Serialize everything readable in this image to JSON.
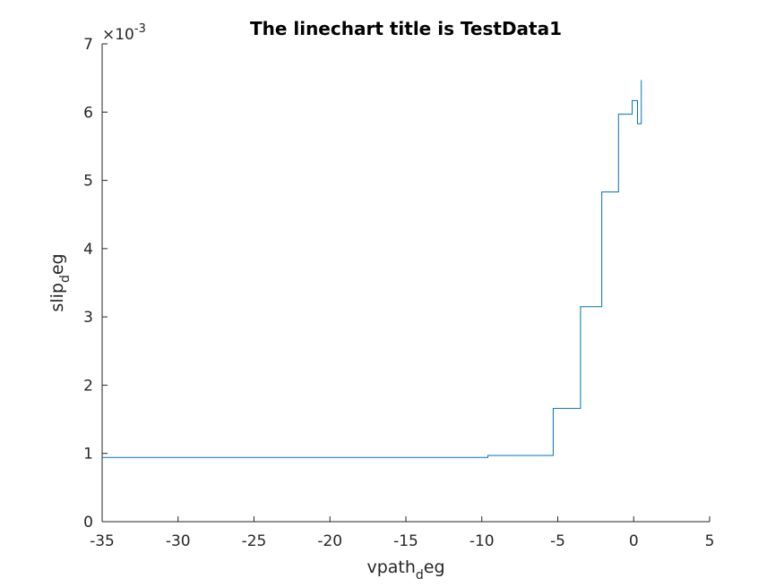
{
  "chart_data": {
    "type": "line",
    "title": "The linechart title is TestData1",
    "xlabel": {
      "main": "vpath",
      "sub": "d",
      "rest": "eg"
    },
    "ylabel": {
      "main": "slip",
      "sub": "d",
      "rest": "eg"
    },
    "xlim": [
      -35,
      5
    ],
    "ylim": [
      0,
      0.007
    ],
    "y_exponent": {
      "base": "×10",
      "power": "-3"
    },
    "xticks": [
      -35,
      -30,
      -25,
      -20,
      -15,
      -10,
      -5,
      0,
      5
    ],
    "xtick_labels": [
      "-35",
      "-30",
      "-25",
      "-20",
      "-15",
      "-10",
      "-5",
      "0",
      "5"
    ],
    "yticks": [
      0,
      0.001,
      0.002,
      0.003,
      0.004,
      0.005,
      0.006,
      0.007
    ],
    "ytick_labels": [
      "0",
      "1",
      "2",
      "3",
      "4",
      "5",
      "6",
      "7"
    ],
    "grid": false,
    "line_color": "#0072bd",
    "series": [
      {
        "x": [
          -35,
          -9.6,
          -9.6,
          -5.3,
          -5.3,
          -3.5,
          -3.5,
          -2.1,
          -2.1,
          -1.0,
          -1.0,
          -0.1,
          -0.1,
          0.25,
          0.25,
          0.5,
          0.5
        ],
        "y": [
          0.00094,
          0.00094,
          0.00097,
          0.00097,
          0.00166,
          0.00166,
          0.00315,
          0.00315,
          0.00483,
          0.00483,
          0.00597,
          0.00597,
          0.00617,
          0.00617,
          0.00583,
          0.00583,
          0.00647
        ]
      }
    ]
  }
}
